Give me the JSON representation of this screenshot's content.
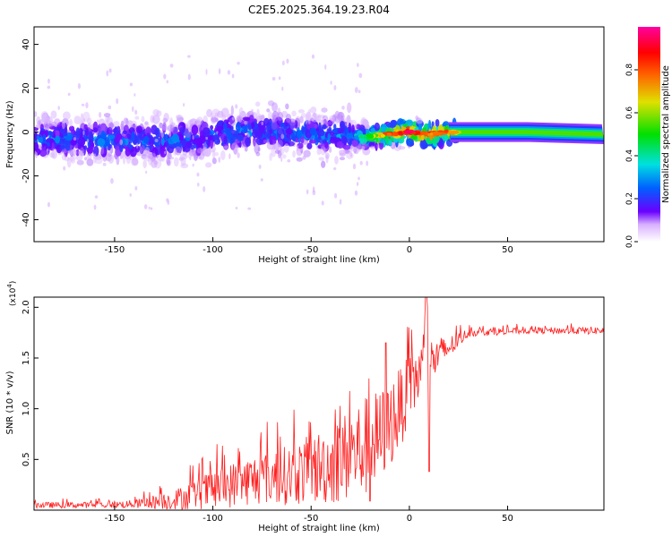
{
  "figure": {
    "title": "C2E5.2025.364.19.23.R04"
  },
  "chart_data": [
    {
      "type": "heatmap",
      "title": "C2E5.2025.364.19.23.R04",
      "xlabel": "Height of straight line (km)",
      "ylabel": "Frequency (Hz)",
      "xlim": [
        -191,
        99
      ],
      "ylim": [
        -50,
        48
      ],
      "xticks": [
        -150,
        -100,
        -50,
        0,
        50
      ],
      "yticks": [
        -40,
        -20,
        0,
        20,
        40
      ],
      "grid": false,
      "colormap": {
        "label": "Normalized spectral amplitude",
        "range": [
          0,
          1
        ],
        "ticks": [
          0.0,
          0.2,
          0.4,
          0.6,
          0.8
        ],
        "colors": [
          "#ffffff",
          "#6a00ff",
          "#0060ff",
          "#00e0e0",
          "#00e000",
          "#e0e000",
          "#ff6000",
          "#ff0000",
          "#ff00a0"
        ]
      },
      "ridge": [
        {
          "x": -191,
          "freq": -3,
          "amp": 0.28
        },
        {
          "x": -170,
          "freq": -3,
          "amp": 0.3
        },
        {
          "x": -150,
          "freq": -4,
          "amp": 0.3
        },
        {
          "x": -130,
          "freq": -4,
          "amp": 0.28
        },
        {
          "x": -110,
          "freq": -3,
          "amp": 0.28
        },
        {
          "x": -90,
          "freq": 0,
          "amp": 0.3
        },
        {
          "x": -70,
          "freq": 0,
          "amp": 0.3
        },
        {
          "x": -50,
          "freq": -1,
          "amp": 0.3
        },
        {
          "x": -30,
          "freq": -2,
          "amp": 0.32
        },
        {
          "x": -20,
          "freq": -2,
          "amp": 0.55
        },
        {
          "x": -10,
          "freq": -1,
          "amp": 0.85
        },
        {
          "x": 0,
          "freq": 0,
          "amp": 0.95
        },
        {
          "x": 10,
          "freq": -1,
          "amp": 0.85
        },
        {
          "x": 20,
          "freq": 0,
          "amp": 0.8
        },
        {
          "x": 30,
          "freq": 0,
          "amp": 0.55
        },
        {
          "x": 60,
          "freq": 0,
          "amp": 0.5
        },
        {
          "x": 99,
          "freq": -1,
          "amp": 0.45
        }
      ]
    },
    {
      "type": "line",
      "xlabel": "Height of straight line (km)",
      "ylabel": "SNR (10 * v/v)",
      "y_multiplier": "(x10",
      "y_multiplier_exp": "4",
      "xlim": [
        -191,
        99
      ],
      "ylim": [
        0,
        2.1
      ],
      "xticks": [
        -150,
        -100,
        -50,
        0,
        50
      ],
      "yticks": [
        0.5,
        1.0,
        1.5,
        2.0
      ],
      "series": [
        {
          "color": "#ff2020",
          "envelope": [
            {
              "x": -191,
              "mean": 0.05,
              "amp": 0.03
            },
            {
              "x": -160,
              "mean": 0.05,
              "amp": 0.03
            },
            {
              "x": -140,
              "mean": 0.06,
              "amp": 0.04
            },
            {
              "x": -120,
              "mean": 0.1,
              "amp": 0.1
            },
            {
              "x": -100,
              "mean": 0.2,
              "amp": 0.2
            },
            {
              "x": -80,
              "mean": 0.3,
              "amp": 0.25
            },
            {
              "x": -60,
              "mean": 0.35,
              "amp": 0.3
            },
            {
              "x": -40,
              "mean": 0.45,
              "amp": 0.4
            },
            {
              "x": -25,
              "mean": 0.6,
              "amp": 0.5
            },
            {
              "x": -15,
              "mean": 0.7,
              "amp": 0.5
            },
            {
              "x": -5,
              "mean": 1.0,
              "amp": 0.4
            },
            {
              "x": 5,
              "mean": 1.35,
              "amp": 0.3
            },
            {
              "x": 10,
              "mean": 1.45,
              "amp": 0.25
            },
            {
              "x": 20,
              "mean": 1.6,
              "amp": 0.12
            },
            {
              "x": 30,
              "mean": 1.75,
              "amp": 0.04
            },
            {
              "x": 60,
              "mean": 1.77,
              "amp": 0.03
            },
            {
              "x": 99,
              "mean": 1.77,
              "amp": 0.04
            }
          ],
          "peaks": [
            {
              "x": 8.5,
              "y": 2.1
            },
            {
              "x": 10,
              "y": 0.38
            },
            {
              "x": -12,
              "y": 1.65
            },
            {
              "x": -20,
              "y": 0.09
            }
          ]
        }
      ]
    }
  ]
}
